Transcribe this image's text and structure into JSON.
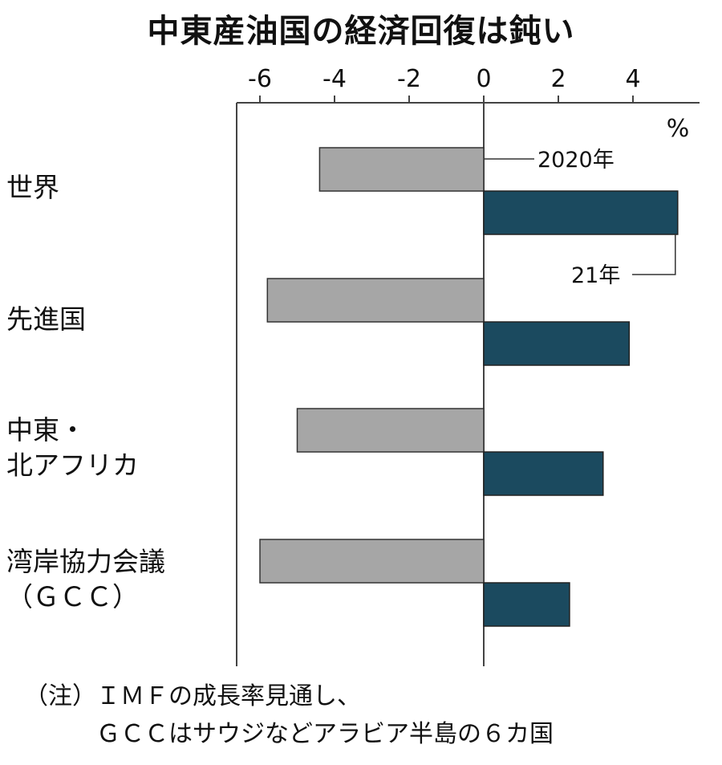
{
  "title": "中東産油国の経済回復は鈍い",
  "unit": "%",
  "series_labels": {
    "s2020": "2020年",
    "s2021": "21年"
  },
  "note": {
    "line1": "（注）ＩＭＦの成長率見通し、",
    "line2": "ＧＣＣはサウジなどアラビア半島の６カ国"
  },
  "colors": {
    "s2020": "#a6a6a6",
    "s2021": "#1b4a5f"
  },
  "chart_data": {
    "type": "bar",
    "orientation": "horizontal",
    "title": "中東産油国の経済回復は鈍い",
    "xlabel": "%",
    "xlim": [
      -6.6,
      5.7
    ],
    "xticks": [
      -6,
      -4,
      -2,
      0,
      2,
      4
    ],
    "categories": [
      "世界",
      "先進国",
      "中東・北アフリカ",
      "湾岸協力会議（ＧＣＣ）"
    ],
    "category_lines": [
      [
        "世界"
      ],
      [
        "先進国"
      ],
      [
        "中東・",
        "北アフリカ"
      ],
      [
        "湾岸協力会議",
        "（ＧＣＣ）"
      ]
    ],
    "series": [
      {
        "name": "2020年",
        "values": [
          -4.4,
          -5.8,
          -5.0,
          -6.0
        ]
      },
      {
        "name": "21年",
        "values": [
          5.2,
          3.9,
          3.2,
          2.3
        ]
      }
    ]
  }
}
